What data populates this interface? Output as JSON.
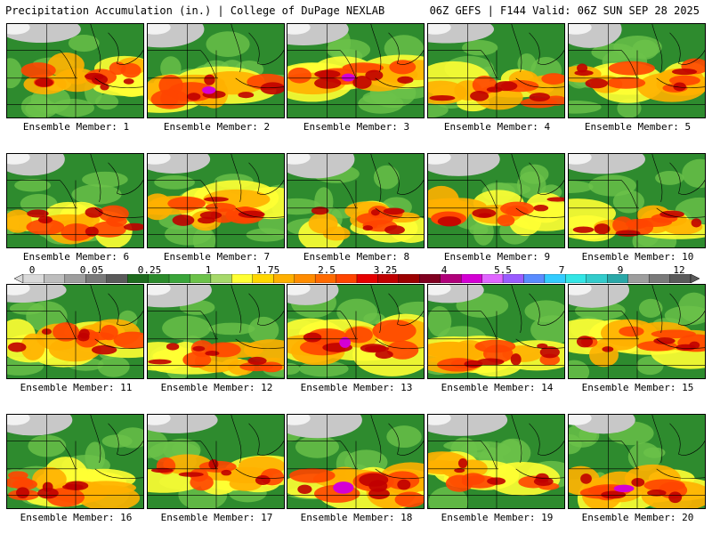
{
  "header": {
    "title_left": "Precipitation Accumulation (in.) | College of DuPage NEXLAB",
    "title_right": "06Z GEFS | F144 Valid: 06Z SUN SEP 28 2025"
  },
  "colorbar": {
    "tick_labels": [
      "0",
      "0.05",
      "0.25",
      "1",
      "1.75",
      "2.5",
      "3.25",
      "4",
      "5.5",
      "7",
      "9",
      "12"
    ],
    "colors": [
      "#d9d9d9",
      "#bdbdbd",
      "#9e9e9e",
      "#7a7a7a",
      "#5a5a5a",
      "#1e6b1e",
      "#2b8a2b",
      "#3aa53a",
      "#6cc24a",
      "#a6d96a",
      "#ffff33",
      "#ffd700",
      "#ffb000",
      "#ff8c00",
      "#ff6a00",
      "#ff4500",
      "#e60000",
      "#c00000",
      "#9c0000",
      "#800020",
      "#b0007a",
      "#d400d4",
      "#e066ff",
      "#9a5cff",
      "#5a8cff",
      "#33ccff",
      "#33e6e6",
      "#33cccc",
      "#2aa8a8",
      "#9e9e9e",
      "#7a7a7a",
      "#5a5a5a"
    ]
  },
  "members": [
    {
      "label": "Ensemble Member: 1",
      "intensity": 0.55
    },
    {
      "label": "Ensemble Member: 2",
      "intensity": 0.85
    },
    {
      "label": "Ensemble Member: 3",
      "intensity": 0.9
    },
    {
      "label": "Ensemble Member: 4",
      "intensity": 0.7
    },
    {
      "label": "Ensemble Member: 5",
      "intensity": 0.8
    },
    {
      "label": "Ensemble Member: 6",
      "intensity": 0.6
    },
    {
      "label": "Ensemble Member: 7",
      "intensity": 0.75
    },
    {
      "label": "Ensemble Member: 8",
      "intensity": 0.55
    },
    {
      "label": "Ensemble Member: 9",
      "intensity": 0.65
    },
    {
      "label": "Ensemble Member: 10",
      "intensity": 0.7
    },
    {
      "label": "Ensemble Member: 11",
      "intensity": 0.7
    },
    {
      "label": "Ensemble Member: 12",
      "intensity": 0.6
    },
    {
      "label": "Ensemble Member: 13",
      "intensity": 0.9
    },
    {
      "label": "Ensemble Member: 14",
      "intensity": 0.8
    },
    {
      "label": "Ensemble Member: 15",
      "intensity": 0.75
    },
    {
      "label": "Ensemble Member: 16",
      "intensity": 0.7
    },
    {
      "label": "Ensemble Member: 17",
      "intensity": 0.65
    },
    {
      "label": "Ensemble Member: 18",
      "intensity": 0.95
    },
    {
      "label": "Ensemble Member: 19",
      "intensity": 0.6
    },
    {
      "label": "Ensemble Member: 20",
      "intensity": 0.85
    }
  ]
}
